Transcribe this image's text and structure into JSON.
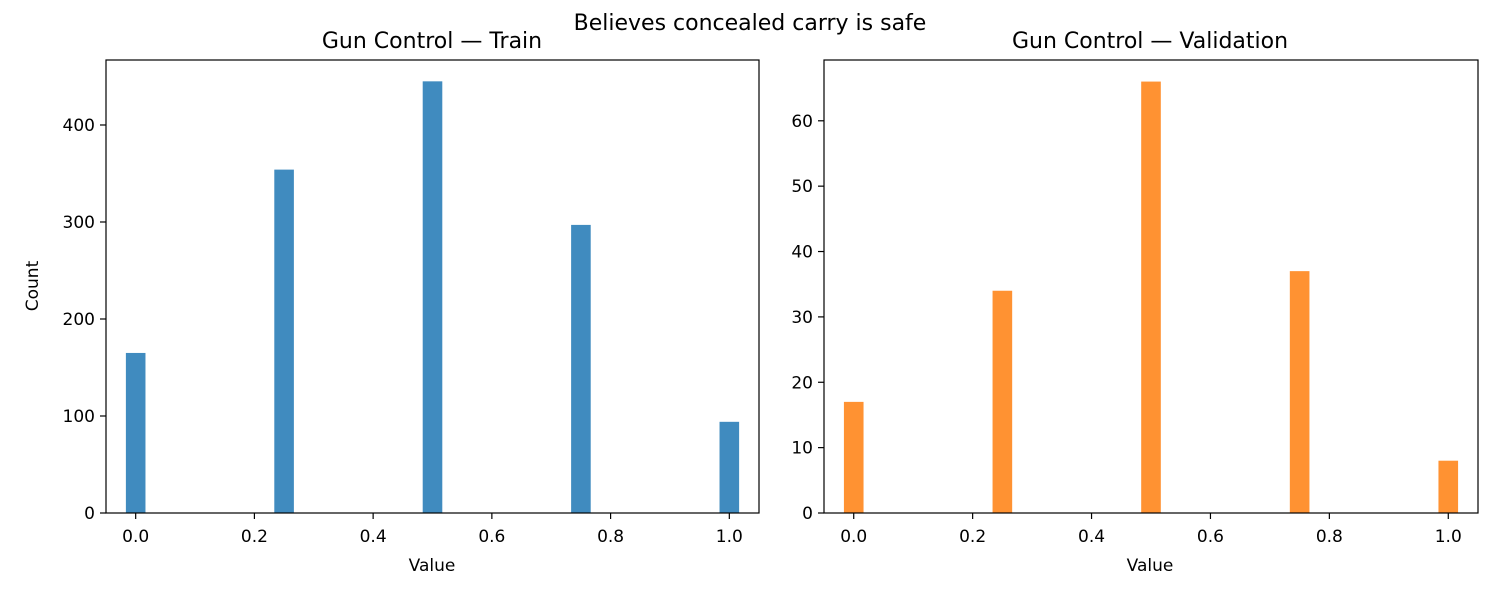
{
  "figure": {
    "suptitle": "Believes concealed carry is safe"
  },
  "chart_data": [
    {
      "type": "bar",
      "title": "Gun Control — Train",
      "xlabel": "Value",
      "ylabel": "Count",
      "x": [
        0.0,
        0.25,
        0.5,
        0.75,
        1.0
      ],
      "values": [
        165,
        354,
        445,
        297,
        94
      ],
      "xlim": [
        -0.05,
        1.05
      ],
      "ylim": [
        0,
        467
      ],
      "xticks": [
        "0.0",
        "0.2",
        "0.4",
        "0.6",
        "0.8",
        "1.0"
      ],
      "yticks": [
        "0",
        "100",
        "200",
        "300",
        "400"
      ],
      "color": "#1f77b4",
      "grid": false
    },
    {
      "type": "bar",
      "title": "Gun Control — Validation",
      "xlabel": "Value",
      "ylabel": "",
      "x": [
        0.0,
        0.25,
        0.5,
        0.75,
        1.0
      ],
      "values": [
        17,
        34,
        66,
        37,
        8
      ],
      "xlim": [
        -0.05,
        1.05
      ],
      "ylim": [
        0,
        69.3
      ],
      "xticks": [
        "0.0",
        "0.2",
        "0.4",
        "0.6",
        "0.8",
        "1.0"
      ],
      "yticks": [
        "0",
        "10",
        "20",
        "30",
        "40",
        "50",
        "60"
      ],
      "color": "#ff7f0e",
      "grid": false
    }
  ]
}
